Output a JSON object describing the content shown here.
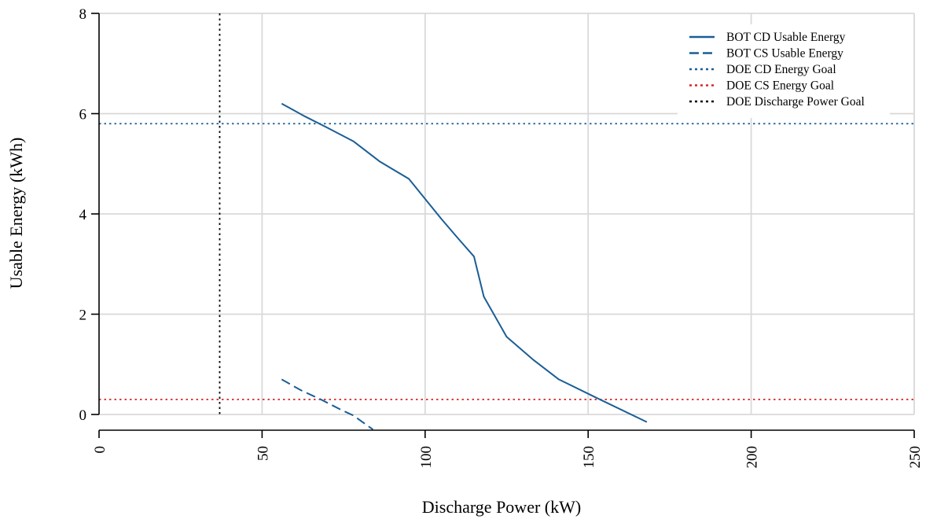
{
  "chart_data": {
    "type": "line",
    "xlabel": "Discharge Power (kW)",
    "ylabel": "Usable Energy (kWh)",
    "xlim": [
      0,
      250
    ],
    "ylim": [
      0,
      8
    ],
    "xticks": [
      0,
      50,
      100,
      150,
      200,
      250
    ],
    "yticks": [
      0,
      2,
      4,
      6,
      8
    ],
    "x_tick_labels": [
      "0",
      "50",
      "100",
      "150",
      "200",
      "250"
    ],
    "y_tick_labels": [
      "0",
      "2",
      "4",
      "6",
      "8"
    ],
    "grid": true,
    "legend_position": "top-right",
    "series": [
      {
        "name": "BOT CD Usable Energy",
        "style": "solid",
        "color": "#1a5e96",
        "x": [
          56,
          63,
          70,
          78,
          86,
          95,
          100,
          105,
          110,
          115,
          118,
          125,
          133,
          141,
          152,
          168
        ],
        "y": [
          6.2,
          5.95,
          5.72,
          5.45,
          5.05,
          4.7,
          4.3,
          3.9,
          3.52,
          3.15,
          2.35,
          1.55,
          1.1,
          0.7,
          0.35,
          -0.15
        ]
      },
      {
        "name": "BOT CS Usable Energy",
        "style": "dashed",
        "color": "#1a5e96",
        "x": [
          56,
          62,
          68,
          74,
          78,
          84
        ],
        "y": [
          0.7,
          0.48,
          0.3,
          0.1,
          -0.02,
          -0.3
        ]
      }
    ],
    "reference_lines": [
      {
        "name": "DOE CD Energy Goal",
        "orientation": "horizontal",
        "value": 5.8,
        "style": "dotted",
        "color": "#1a5e96"
      },
      {
        "name": "DOE CS Energy Goal",
        "orientation": "horizontal",
        "value": 0.3,
        "style": "dotted",
        "color": "#d62728"
      },
      {
        "name": "DOE Discharge Power Goal",
        "orientation": "vertical",
        "value": 37,
        "style": "dotted",
        "color": "#000000"
      }
    ],
    "legend": [
      {
        "label": "BOT CD Usable Energy",
        "style": "solid",
        "color": "#1a5e96"
      },
      {
        "label": "BOT CS Usable Energy",
        "style": "dashed",
        "color": "#1a5e96"
      },
      {
        "label": "DOE CD Energy Goal",
        "style": "dotted",
        "color": "#1a5e96"
      },
      {
        "label": "DOE CS Energy Goal",
        "style": "dotted",
        "color": "#d62728"
      },
      {
        "label": "DOE Discharge Power Goal",
        "style": "dotted",
        "color": "#000000"
      }
    ]
  }
}
